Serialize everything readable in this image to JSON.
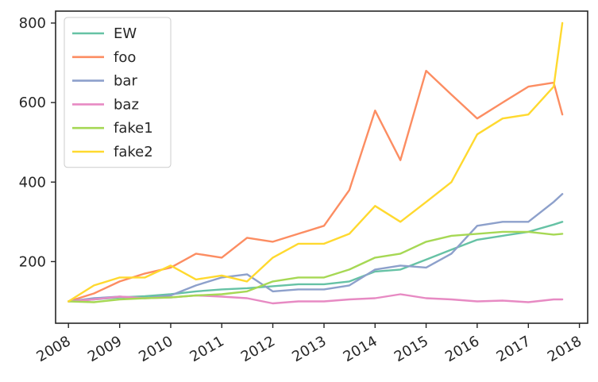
{
  "chart_data": {
    "type": "line",
    "title": "",
    "xlabel": "",
    "ylabel": "",
    "x_range": [
      "2007-10-01",
      "2018-03-01"
    ],
    "ylim": [
      45,
      830
    ],
    "grid": false,
    "legend_placement": "top-left",
    "x_ticks": [
      "2008",
      "2009",
      "2010",
      "2011",
      "2012",
      "2013",
      "2014",
      "2015",
      "2016",
      "2017",
      "2018"
    ],
    "y_ticks": [
      200,
      400,
      600,
      800
    ],
    "x": [
      "2008-01-01",
      "2008-07-01",
      "2009-01-01",
      "2009-07-01",
      "2010-01-01",
      "2010-07-01",
      "2011-01-01",
      "2011-07-01",
      "2012-01-01",
      "2012-07-01",
      "2013-01-01",
      "2013-07-01",
      "2014-01-01",
      "2014-07-01",
      "2015-01-01",
      "2015-07-01",
      "2016-01-01",
      "2016-07-01",
      "2017-01-01",
      "2017-07-01",
      "2017-09-01"
    ],
    "series": [
      {
        "name": "EW",
        "color": "#66c2a5",
        "values": [
          100,
          105,
          110,
          113,
          118,
          125,
          130,
          133,
          138,
          143,
          143,
          150,
          175,
          180,
          205,
          230,
          255,
          265,
          275,
          293,
          300
        ]
      },
      {
        "name": "foo",
        "color": "#fc8d62",
        "values": [
          100,
          120,
          150,
          170,
          185,
          220,
          210,
          260,
          250,
          270,
          290,
          380,
          580,
          455,
          680,
          620,
          560,
          600,
          640,
          650,
          570
        ]
      },
      {
        "name": "bar",
        "color": "#8da0cb",
        "values": [
          100,
          108,
          112,
          108,
          115,
          140,
          160,
          168,
          125,
          130,
          130,
          140,
          180,
          190,
          185,
          220,
          290,
          300,
          300,
          350,
          370
        ]
      },
      {
        "name": "baz",
        "color": "#e78ac3",
        "values": [
          100,
          105,
          112,
          108,
          110,
          115,
          112,
          108,
          95,
          100,
          100,
          105,
          108,
          118,
          108,
          105,
          100,
          102,
          98,
          105,
          105
        ]
      },
      {
        "name": "fake1",
        "color": "#a6d854",
        "values": [
          100,
          98,
          105,
          108,
          110,
          115,
          118,
          125,
          150,
          160,
          160,
          180,
          210,
          220,
          250,
          265,
          270,
          275,
          275,
          268,
          270
        ]
      },
      {
        "name": "fake2",
        "color": "#ffd92f",
        "values": [
          100,
          140,
          160,
          160,
          190,
          155,
          165,
          150,
          210,
          245,
          245,
          270,
          340,
          300,
          350,
          400,
          520,
          560,
          570,
          640,
          800
        ]
      }
    ]
  }
}
